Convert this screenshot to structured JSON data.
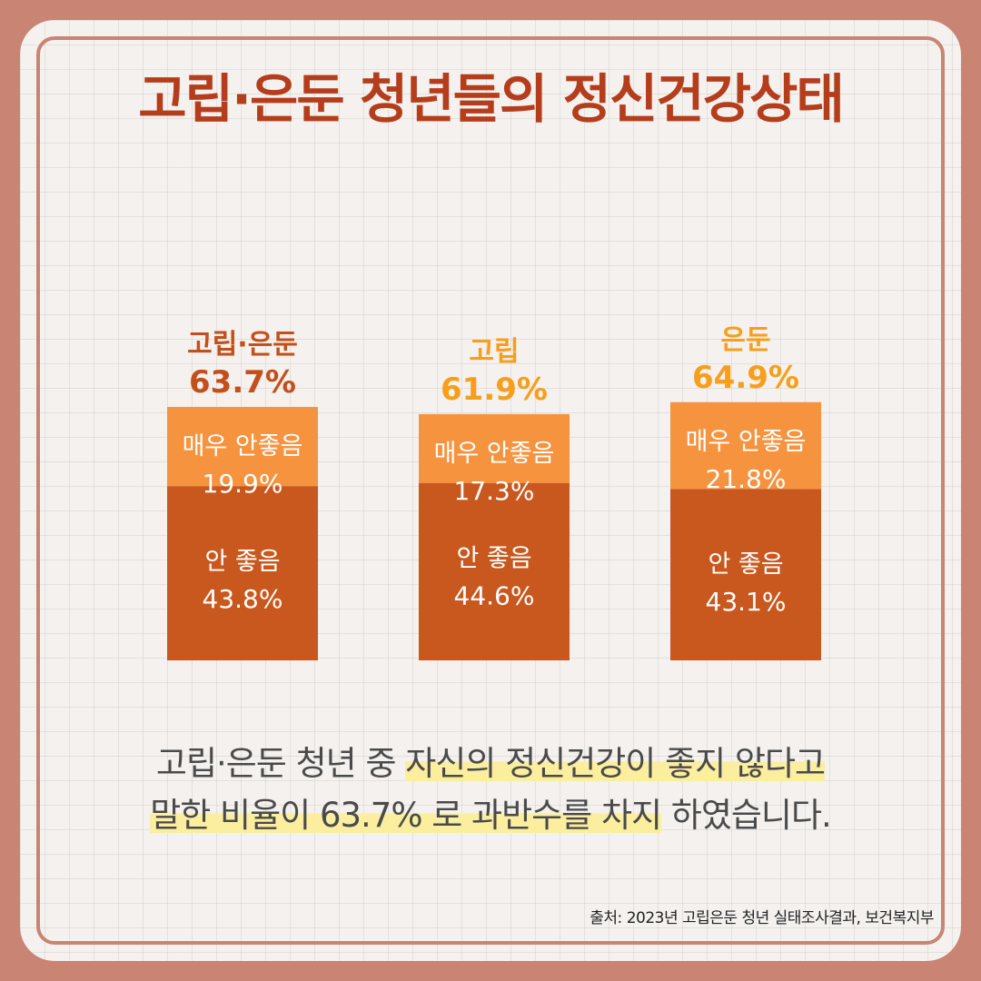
{
  "title": "고립·은둔 청년들의 정신건강상태",
  "chart_data": {
    "type": "bar",
    "stacked": true,
    "ylim": [
      0,
      100
    ],
    "categories": [
      {
        "name": "고립·은둔",
        "total": "63.7%",
        "color": "#c3501b"
      },
      {
        "name": "고립",
        "total": "61.9%",
        "color": "#f79e1b"
      },
      {
        "name": "은둔",
        "total": "64.9%",
        "color": "#f79e1b"
      }
    ],
    "series": [
      {
        "name": "안 좋음",
        "color": "#c9581e",
        "values": [
          43.8,
          44.6,
          43.1
        ],
        "labels": [
          "43.8%",
          "44.6%",
          "43.1%"
        ]
      },
      {
        "name": "매우 안좋음",
        "color": "#f5933f",
        "values": [
          19.9,
          17.3,
          21.8
        ],
        "labels": [
          "19.9%",
          "17.3%",
          "21.8%"
        ]
      }
    ]
  },
  "caption": {
    "line1_plain": "고립·은둔 청년 중 ",
    "line1_highlight": "자신의 정신건강이 좋지 않다고",
    "line2_highlight": "말한 비율이 63.7% 로 과반수를 차지",
    "line2_plain": " 하였습니다."
  },
  "source": "출처: 2023년 고립은둔 청년 실태조사결과, 보건복지부"
}
